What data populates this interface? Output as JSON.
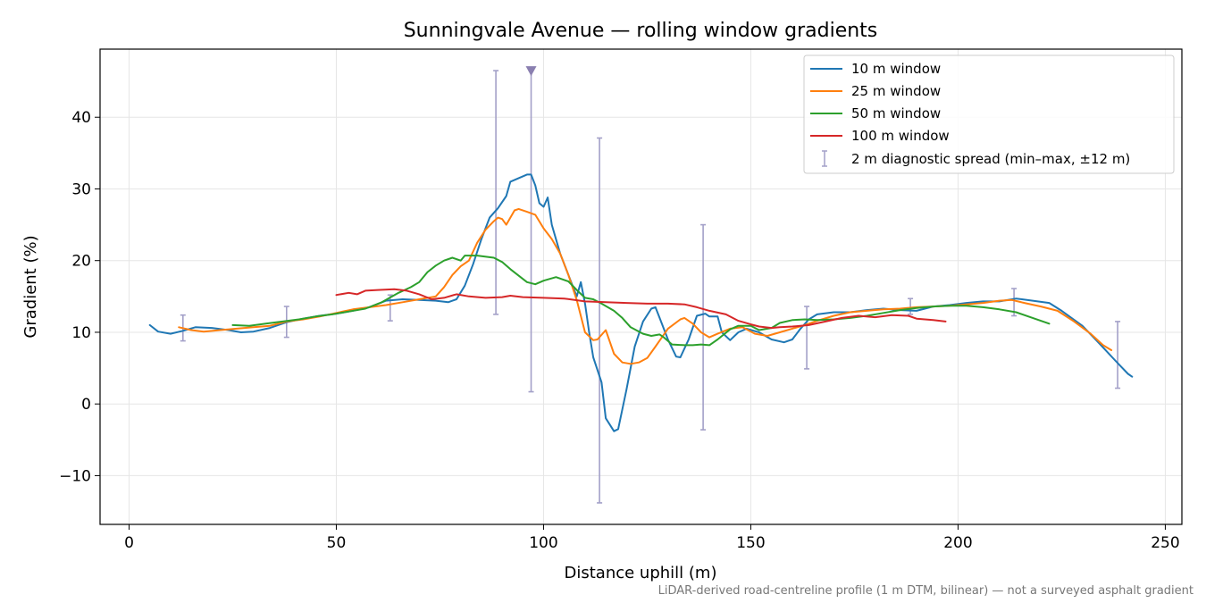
{
  "chart_data": {
    "type": "line",
    "title": "Sunningvale Avenue — rolling window gradients",
    "xlabel": "Distance uphill (m)",
    "ylabel": "Gradient (%)",
    "xlim": [
      -7,
      254
    ],
    "ylim": [
      -16.8,
      49.5
    ],
    "xticks": [
      0,
      50,
      100,
      150,
      200,
      250
    ],
    "yticks": [
      -10,
      0,
      10,
      20,
      30,
      40
    ],
    "xtick_labels": [
      "0",
      "50",
      "100",
      "150",
      "200",
      "250"
    ],
    "ytick_labels": [
      "−10",
      "0",
      "10",
      "20",
      "30",
      "40"
    ],
    "grid": true,
    "legend_position": "top-right",
    "footnote": "LiDAR-derived road-centreline profile (1 m DTM, bilinear) — not a surveyed asphalt gradient",
    "series": [
      {
        "name": "10 m window",
        "color": "#1f77b4",
        "points": [
          [
            5,
            11
          ],
          [
            7,
            10.1
          ],
          [
            10,
            9.8
          ],
          [
            13,
            10.2
          ],
          [
            16,
            10.7
          ],
          [
            20,
            10.6
          ],
          [
            24,
            10.3
          ],
          [
            27,
            10.0
          ],
          [
            30,
            10.1
          ],
          [
            34,
            10.6
          ],
          [
            38,
            11.4
          ],
          [
            42,
            11.9
          ],
          [
            46,
            12.3
          ],
          [
            50,
            12.6
          ],
          [
            54,
            13.0
          ],
          [
            58,
            13.5
          ],
          [
            62,
            14.4
          ],
          [
            66,
            14.6
          ],
          [
            70,
            14.5
          ],
          [
            74,
            14.4
          ],
          [
            77,
            14.2
          ],
          [
            79,
            14.6
          ],
          [
            81,
            16.5
          ],
          [
            83,
            19.5
          ],
          [
            85,
            23
          ],
          [
            87,
            26
          ],
          [
            89,
            27.3
          ],
          [
            91,
            29
          ],
          [
            92,
            31
          ],
          [
            94,
            31.5
          ],
          [
            96,
            32
          ],
          [
            97,
            32
          ],
          [
            98,
            30.5
          ],
          [
            99,
            28
          ],
          [
            100,
            27.5
          ],
          [
            101,
            28.8
          ],
          [
            102,
            25
          ],
          [
            104,
            21
          ],
          [
            106,
            18
          ],
          [
            108,
            15
          ],
          [
            109,
            17
          ],
          [
            110,
            14
          ],
          [
            111,
            10
          ],
          [
            112,
            6.5
          ],
          [
            114,
            3
          ],
          [
            115,
            -2
          ],
          [
            117,
            -3.8
          ],
          [
            118,
            -3.5
          ],
          [
            120,
            2
          ],
          [
            122,
            8
          ],
          [
            124,
            11.5
          ],
          [
            126,
            13.3
          ],
          [
            127,
            13.5
          ],
          [
            128,
            12
          ],
          [
            130,
            9
          ],
          [
            132,
            6.6
          ],
          [
            133,
            6.5
          ],
          [
            135,
            9
          ],
          [
            137,
            12.3
          ],
          [
            139,
            12.6
          ],
          [
            140,
            12.2
          ],
          [
            142,
            12.2
          ],
          [
            143,
            10
          ],
          [
            145,
            8.9
          ],
          [
            147,
            10
          ],
          [
            149,
            10.5
          ],
          [
            152,
            10
          ],
          [
            155,
            9
          ],
          [
            158,
            8.6
          ],
          [
            160,
            9
          ],
          [
            162,
            10.5
          ],
          [
            164,
            11.8
          ],
          [
            166,
            12.5
          ],
          [
            170,
            12.8
          ],
          [
            174,
            12.8
          ],
          [
            178,
            13.1
          ],
          [
            182,
            13.3
          ],
          [
            186,
            13.1
          ],
          [
            190,
            13
          ],
          [
            194,
            13.6
          ],
          [
            198,
            13.8
          ],
          [
            202,
            14.1
          ],
          [
            206,
            14.3
          ],
          [
            210,
            14.3
          ],
          [
            214,
            14.7
          ],
          [
            218,
            14.4
          ],
          [
            222,
            14.1
          ],
          [
            225,
            13
          ],
          [
            230,
            10.9
          ],
          [
            234,
            8.5
          ],
          [
            238,
            6
          ],
          [
            241,
            4.2
          ],
          [
            242,
            3.8
          ]
        ]
      },
      {
        "name": "25 m window",
        "color": "#ff7f0e",
        "points": [
          [
            12,
            10.7
          ],
          [
            15,
            10.3
          ],
          [
            18,
            10.1
          ],
          [
            22,
            10.3
          ],
          [
            26,
            10.5
          ],
          [
            30,
            10.7
          ],
          [
            34,
            10.9
          ],
          [
            38,
            11.5
          ],
          [
            42,
            11.8
          ],
          [
            46,
            12.2
          ],
          [
            50,
            12.7
          ],
          [
            54,
            13.2
          ],
          [
            58,
            13.5
          ],
          [
            62,
            13.8
          ],
          [
            66,
            14.2
          ],
          [
            70,
            14.6
          ],
          [
            74,
            15
          ],
          [
            76,
            16.3
          ],
          [
            78,
            18
          ],
          [
            80,
            19.2
          ],
          [
            82,
            20
          ],
          [
            84,
            22.5
          ],
          [
            86,
            24.3
          ],
          [
            88,
            25.5
          ],
          [
            89,
            26
          ],
          [
            90,
            25.8
          ],
          [
            91,
            25
          ],
          [
            92,
            26
          ],
          [
            93,
            27
          ],
          [
            94,
            27.2
          ],
          [
            96,
            26.8
          ],
          [
            98,
            26.4
          ],
          [
            100,
            24.5
          ],
          [
            102,
            23
          ],
          [
            104,
            21
          ],
          [
            106,
            18
          ],
          [
            108,
            14.5
          ],
          [
            110,
            10
          ],
          [
            112,
            8.9
          ],
          [
            113,
            9
          ],
          [
            115,
            10.3
          ],
          [
            117,
            7
          ],
          [
            119,
            5.8
          ],
          [
            121,
            5.6
          ],
          [
            123,
            5.8
          ],
          [
            125,
            6.4
          ],
          [
            127,
            8
          ],
          [
            130,
            10.5
          ],
          [
            133,
            11.8
          ],
          [
            134,
            12
          ],
          [
            136,
            11.2
          ],
          [
            138,
            10
          ],
          [
            140,
            9.3
          ],
          [
            142,
            9.8
          ],
          [
            145,
            10.5
          ],
          [
            148,
            10.7
          ],
          [
            151,
            9.8
          ],
          [
            154,
            9.5
          ],
          [
            157,
            10
          ],
          [
            160,
            10.5
          ],
          [
            163,
            11
          ],
          [
            166,
            11.6
          ],
          [
            170,
            12.3
          ],
          [
            174,
            12.8
          ],
          [
            178,
            13
          ],
          [
            182,
            13.2
          ],
          [
            186,
            13.3
          ],
          [
            190,
            13.5
          ],
          [
            194,
            13.6
          ],
          [
            198,
            13.7
          ],
          [
            202,
            13.9
          ],
          [
            206,
            14.1
          ],
          [
            210,
            14.4
          ],
          [
            213,
            14.5
          ],
          [
            216,
            14.1
          ],
          [
            220,
            13.6
          ],
          [
            224,
            13
          ],
          [
            228,
            11.5
          ],
          [
            232,
            9.8
          ],
          [
            235,
            8.2
          ],
          [
            237,
            7.5
          ]
        ]
      },
      {
        "name": "50 m window",
        "color": "#2ca02c",
        "points": [
          [
            25,
            11
          ],
          [
            29,
            10.9
          ],
          [
            33,
            11.2
          ],
          [
            37,
            11.5
          ],
          [
            41,
            11.8
          ],
          [
            45,
            12.2
          ],
          [
            49,
            12.5
          ],
          [
            53,
            12.9
          ],
          [
            57,
            13.3
          ],
          [
            61,
            14.2
          ],
          [
            65,
            15.5
          ],
          [
            68,
            16.3
          ],
          [
            70,
            17
          ],
          [
            72,
            18.4
          ],
          [
            74,
            19.3
          ],
          [
            76,
            20
          ],
          [
            78,
            20.4
          ],
          [
            80,
            20
          ],
          [
            81,
            20.7
          ],
          [
            84,
            20.7
          ],
          [
            88,
            20.4
          ],
          [
            90,
            19.8
          ],
          [
            92,
            18.8
          ],
          [
            96,
            17
          ],
          [
            98,
            16.7
          ],
          [
            100,
            17.2
          ],
          [
            103,
            17.7
          ],
          [
            106,
            17.1
          ],
          [
            108,
            15.9
          ],
          [
            110,
            14.8
          ],
          [
            112,
            14.6
          ],
          [
            114,
            14
          ],
          [
            117,
            13
          ],
          [
            119,
            12
          ],
          [
            121,
            10.7
          ],
          [
            124,
            9.8
          ],
          [
            126,
            9.5
          ],
          [
            128,
            9.7
          ],
          [
            129,
            9.3
          ],
          [
            131,
            8.3
          ],
          [
            134,
            8.2
          ],
          [
            136,
            8.2
          ],
          [
            138,
            8.3
          ],
          [
            140,
            8.2
          ],
          [
            142,
            9
          ],
          [
            145,
            10.4
          ],
          [
            147,
            10.9
          ],
          [
            150,
            10.9
          ],
          [
            152,
            10.3
          ],
          [
            155,
            10.6
          ],
          [
            157,
            11.3
          ],
          [
            160,
            11.7
          ],
          [
            163,
            11.8
          ],
          [
            166,
            11.7
          ],
          [
            170,
            11.8
          ],
          [
            174,
            12
          ],
          [
            178,
            12.3
          ],
          [
            182,
            12.7
          ],
          [
            186,
            13.1
          ],
          [
            190,
            13.4
          ],
          [
            194,
            13.6
          ],
          [
            198,
            13.7
          ],
          [
            202,
            13.7
          ],
          [
            206,
            13.5
          ],
          [
            210,
            13.2
          ],
          [
            214,
            12.8
          ],
          [
            218,
            12
          ],
          [
            222,
            11.2
          ]
        ]
      },
      {
        "name": "100 m window",
        "color": "#d62728",
        "points": [
          [
            50,
            15.2
          ],
          [
            53,
            15.5
          ],
          [
            55,
            15.3
          ],
          [
            57,
            15.8
          ],
          [
            60,
            15.9
          ],
          [
            64,
            16
          ],
          [
            67,
            15.8
          ],
          [
            70,
            15.3
          ],
          [
            73,
            14.6
          ],
          [
            76,
            14.8
          ],
          [
            79,
            15.3
          ],
          [
            82,
            15
          ],
          [
            86,
            14.8
          ],
          [
            90,
            14.9
          ],
          [
            92,
            15.1
          ],
          [
            95,
            14.9
          ],
          [
            100,
            14.8
          ],
          [
            105,
            14.7
          ],
          [
            110,
            14.3
          ],
          [
            115,
            14.2
          ],
          [
            120,
            14.1
          ],
          [
            125,
            14
          ],
          [
            130,
            14
          ],
          [
            134,
            13.9
          ],
          [
            137,
            13.5
          ],
          [
            140,
            13
          ],
          [
            144,
            12.5
          ],
          [
            147,
            11.6
          ],
          [
            150,
            11.1
          ],
          [
            152,
            10.8
          ],
          [
            155,
            10.6
          ],
          [
            157,
            10.7
          ],
          [
            160,
            10.8
          ],
          [
            164,
            11
          ],
          [
            168,
            11.5
          ],
          [
            172,
            12
          ],
          [
            176,
            12.3
          ],
          [
            180,
            12.1
          ],
          [
            184,
            12.4
          ],
          [
            188,
            12.3
          ],
          [
            190,
            11.9
          ],
          [
            194,
            11.7
          ],
          [
            197,
            11.5
          ]
        ]
      }
    ],
    "error_bars": {
      "name": "2 m diagnostic spread (min–max, ±12 m)",
      "color": "#a3a0c8",
      "points": [
        {
          "x": 13,
          "min": 8.8,
          "max": 12.4
        },
        {
          "x": 38,
          "min": 9.3,
          "max": 13.6
        },
        {
          "x": 63,
          "min": 11.6,
          "max": 15.2
        },
        {
          "x": 88.5,
          "min": 12.5,
          "max": 46.5
        },
        {
          "x": 97,
          "min": 1.7,
          "max": 46.5
        },
        {
          "x": 113.5,
          "min": -13.8,
          "max": 37.1
        },
        {
          "x": 138.5,
          "min": -3.6,
          "max": 25
        },
        {
          "x": 163.5,
          "min": 4.9,
          "max": 13.6
        },
        {
          "x": 188.5,
          "min": 12.5,
          "max": 14.7
        },
        {
          "x": 213.5,
          "min": 12.3,
          "max": 16.1
        },
        {
          "x": 238.5,
          "min": 2.2,
          "max": 11.5
        }
      ]
    },
    "clip_marker": {
      "x": 97,
      "y": 46.5,
      "color": "#8a7fb0"
    }
  }
}
